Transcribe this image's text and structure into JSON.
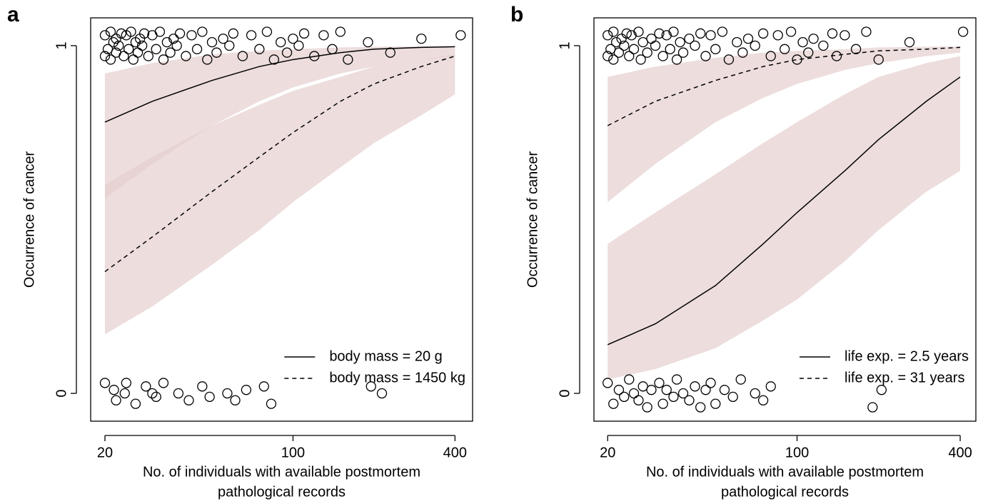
{
  "chart_data": [
    {
      "type": "line",
      "panel_label": "a",
      "ylabel": "Occurrence of cancer",
      "xlabel": [
        "No. of individuals with available postmortem",
        "pathological records"
      ],
      "xlog": true,
      "xlim": [
        17.7,
        465
      ],
      "ylim": [
        -0.08,
        1.08
      ],
      "xticks": [
        20,
        100,
        400
      ],
      "yticks": [
        0,
        1
      ],
      "legend": "bottom-right",
      "band_color": "#e6cfcf",
      "x": [
        20,
        30,
        50,
        75,
        100,
        150,
        200,
        300,
        400
      ],
      "series": [
        {
          "name": "body mass = 20 g",
          "color": "#000000",
          "dash": "solid",
          "values": [
            0.78,
            0.84,
            0.9,
            0.94,
            0.96,
            0.98,
            0.99,
            0.995,
            0.997
          ],
          "lower": [
            0.56,
            0.66,
            0.77,
            0.84,
            0.88,
            0.92,
            0.94,
            0.96,
            0.97
          ],
          "upper": [
            0.92,
            0.95,
            0.975,
            0.985,
            0.99,
            0.995,
            0.997,
            0.998,
            0.999
          ]
        },
        {
          "name": "body mass = 1450 kg",
          "color": "#000000",
          "dash": "dashed",
          "values": [
            0.35,
            0.45,
            0.58,
            0.68,
            0.75,
            0.84,
            0.89,
            0.94,
            0.97
          ],
          "lower": [
            0.17,
            0.25,
            0.37,
            0.47,
            0.55,
            0.65,
            0.72,
            0.8,
            0.86
          ],
          "upper": [
            0.6,
            0.68,
            0.77,
            0.83,
            0.87,
            0.91,
            0.94,
            0.96,
            0.975
          ]
        }
      ],
      "points": {
        "x": [
          20,
          20,
          20.5,
          21,
          21,
          21.5,
          22,
          22,
          22.5,
          23,
          23.5,
          24,
          24.5,
          25,
          25.5,
          26,
          26.5,
          27,
          27.5,
          28,
          29,
          30,
          31,
          32,
          33,
          34,
          35,
          36,
          37,
          38,
          40,
          42,
          44,
          46,
          48,
          50,
          52,
          55,
          58,
          60,
          65,
          70,
          75,
          80,
          85,
          90,
          95,
          100,
          105,
          110,
          120,
          130,
          140,
          150,
          160,
          190,
          230,
          300,
          420,
          20,
          21.6,
          22,
          23.7,
          24,
          26,
          28.4,
          30,
          31,
          33,
          37.5,
          41,
          46,
          49,
          57,
          61,
          67,
          78,
          83,
          195,
          214
        ],
        "y": [
          0.97,
          1.03,
          0.99,
          1.04,
          0.96,
          1.01,
          0.98,
          1.02,
          1.0,
          1.035,
          0.97,
          1.03,
          0.99,
          1.04,
          0.96,
          1.01,
          0.98,
          1.02,
          1.0,
          1.035,
          0.97,
          1.03,
          0.99,
          1.04,
          0.96,
          1.01,
          0.98,
          1.02,
          1.0,
          1.035,
          0.97,
          1.03,
          0.99,
          1.04,
          0.96,
          1.01,
          0.98,
          1.02,
          1.0,
          1.035,
          0.97,
          1.03,
          0.99,
          1.04,
          0.96,
          1.01,
          0.98,
          1.02,
          1.0,
          1.035,
          0.97,
          1.03,
          0.99,
          1.04,
          0.96,
          1.01,
          0.98,
          1.02,
          1.03,
          0.03,
          0.01,
          -0.02,
          0.0,
          0.03,
          -0.03,
          0.02,
          0.0,
          -0.01,
          0.03,
          0.0,
          -0.02,
          0.02,
          -0.01,
          0.0,
          -0.02,
          0.01,
          0.02,
          -0.03,
          0.02,
          0.0
        ]
      }
    },
    {
      "type": "line",
      "panel_label": "b",
      "ylabel": "Occurrence of cancer",
      "xlabel": [
        "No. of individuals with available postmortem",
        "pathological records"
      ],
      "xlog": true,
      "xlim": [
        17.8,
        457
      ],
      "ylim": [
        -0.08,
        1.08
      ],
      "xticks": [
        20,
        100,
        400
      ],
      "yticks": [
        0,
        1
      ],
      "legend": "bottom-right",
      "band_color": "#e6cfcf",
      "x": [
        20,
        30,
        50,
        75,
        100,
        150,
        200,
        300,
        400
      ],
      "series": [
        {
          "name": "life exp. = 2.5 years",
          "color": "#000000",
          "dash": "solid",
          "values": [
            0.14,
            0.2,
            0.31,
            0.43,
            0.52,
            0.64,
            0.73,
            0.84,
            0.91
          ],
          "lower": [
            0.04,
            0.07,
            0.13,
            0.21,
            0.27,
            0.38,
            0.47,
            0.58,
            0.64
          ],
          "upper": [
            0.43,
            0.52,
            0.63,
            0.72,
            0.78,
            0.86,
            0.91,
            0.95,
            0.97
          ]
        },
        {
          "name": "life exp. = 31 years",
          "color": "#000000",
          "dash": "dashed",
          "values": [
            0.77,
            0.84,
            0.9,
            0.94,
            0.96,
            0.975,
            0.985,
            0.99,
            0.995
          ],
          "lower": [
            0.55,
            0.66,
            0.78,
            0.85,
            0.89,
            0.93,
            0.95,
            0.97,
            0.98
          ],
          "upper": [
            0.91,
            0.94,
            0.965,
            0.98,
            0.985,
            0.99,
            0.995,
            0.997,
            0.998
          ]
        }
      ],
      "points": {
        "x": [
          20,
          20,
          20.5,
          21,
          21,
          21.5,
          22,
          22.5,
          23,
          23.5,
          24,
          24.5,
          25,
          26,
          26.5,
          27,
          28,
          29,
          30,
          31,
          32,
          33,
          34,
          35,
          36,
          37,
          38,
          40,
          42,
          44,
          46,
          48,
          50,
          53,
          56,
          60,
          63,
          66,
          70,
          75,
          80,
          85,
          90,
          95,
          100,
          105,
          110,
          115,
          125,
          135,
          140,
          150,
          165,
          180,
          200,
          260,
          410,
          20,
          21,
          22,
          23,
          24,
          25,
          26,
          27,
          28,
          29,
          31,
          32,
          33,
          35,
          36,
          38,
          40,
          42,
          44,
          46,
          48,
          50,
          54,
          58,
          62,
          70,
          75,
          80,
          190,
          205
        ],
        "y": [
          0.97,
          1.03,
          0.99,
          1.04,
          0.96,
          1.01,
          0.98,
          1.02,
          1.0,
          1.035,
          0.97,
          1.03,
          0.99,
          1.04,
          0.96,
          1.01,
          0.98,
          1.02,
          1.0,
          1.035,
          0.97,
          1.03,
          0.99,
          1.04,
          0.96,
          1.01,
          0.98,
          1.02,
          1.0,
          1.035,
          0.97,
          1.03,
          0.99,
          1.04,
          0.96,
          1.01,
          0.98,
          1.02,
          1.0,
          1.035,
          0.97,
          1.03,
          0.99,
          1.04,
          0.96,
          1.01,
          0.98,
          1.02,
          1.0,
          1.035,
          0.97,
          1.03,
          0.99,
          1.04,
          0.96,
          1.01,
          1.04,
          0.03,
          -0.03,
          0.01,
          -0.01,
          0.04,
          0.0,
          -0.02,
          0.02,
          -0.04,
          0.01,
          0.03,
          -0.03,
          0.01,
          -0.01,
          0.04,
          0.0,
          -0.02,
          0.02,
          -0.04,
          0.01,
          0.03,
          -0.03,
          0.01,
          -0.01,
          0.04,
          0.0,
          -0.02,
          0.02,
          -0.04,
          0.01
        ]
      }
    }
  ]
}
